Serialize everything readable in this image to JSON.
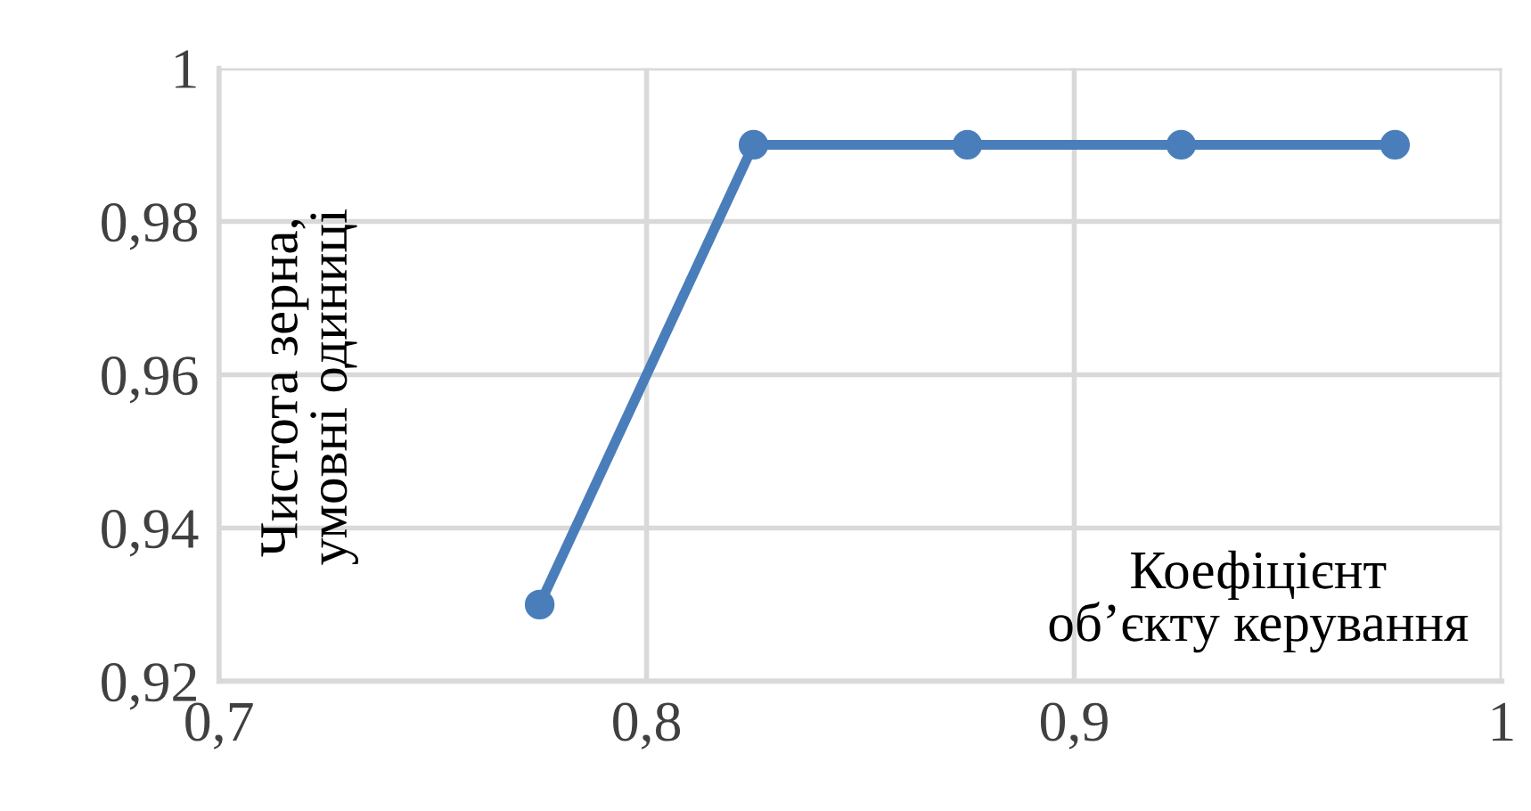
{
  "chart_data": {
    "type": "line",
    "xlabel": "Коефіцієнт\nоб’єкту керування",
    "ylabel": "Чистота зерна,\nумовні одиниці",
    "x": [
      0.775,
      0.825,
      0.875,
      0.925,
      0.975
    ],
    "series": [
      {
        "color": "#4a7ebb",
        "values": [
          0.93,
          0.99,
          0.99,
          0.99,
          0.99
        ]
      }
    ],
    "xlim": [
      0.7,
      1
    ],
    "xticks": [
      {
        "value": 0.7,
        "label": "0,7"
      },
      {
        "value": 0.8,
        "label": "0,8"
      },
      {
        "value": 0.9,
        "label": "0,9"
      },
      1
    ],
    "ylim": [
      0.92,
      1
    ],
    "yticks": [
      {
        "value": 0.92,
        "label": "0,92"
      },
      {
        "value": 0.94,
        "label": "0,94"
      },
      {
        "value": 0.96,
        "label": "0,96"
      },
      {
        "value": 0.98,
        "label": "0,98"
      },
      1
    ],
    "grid": true,
    "marker": "circle",
    "line_style": "solid",
    "legend": false
  }
}
